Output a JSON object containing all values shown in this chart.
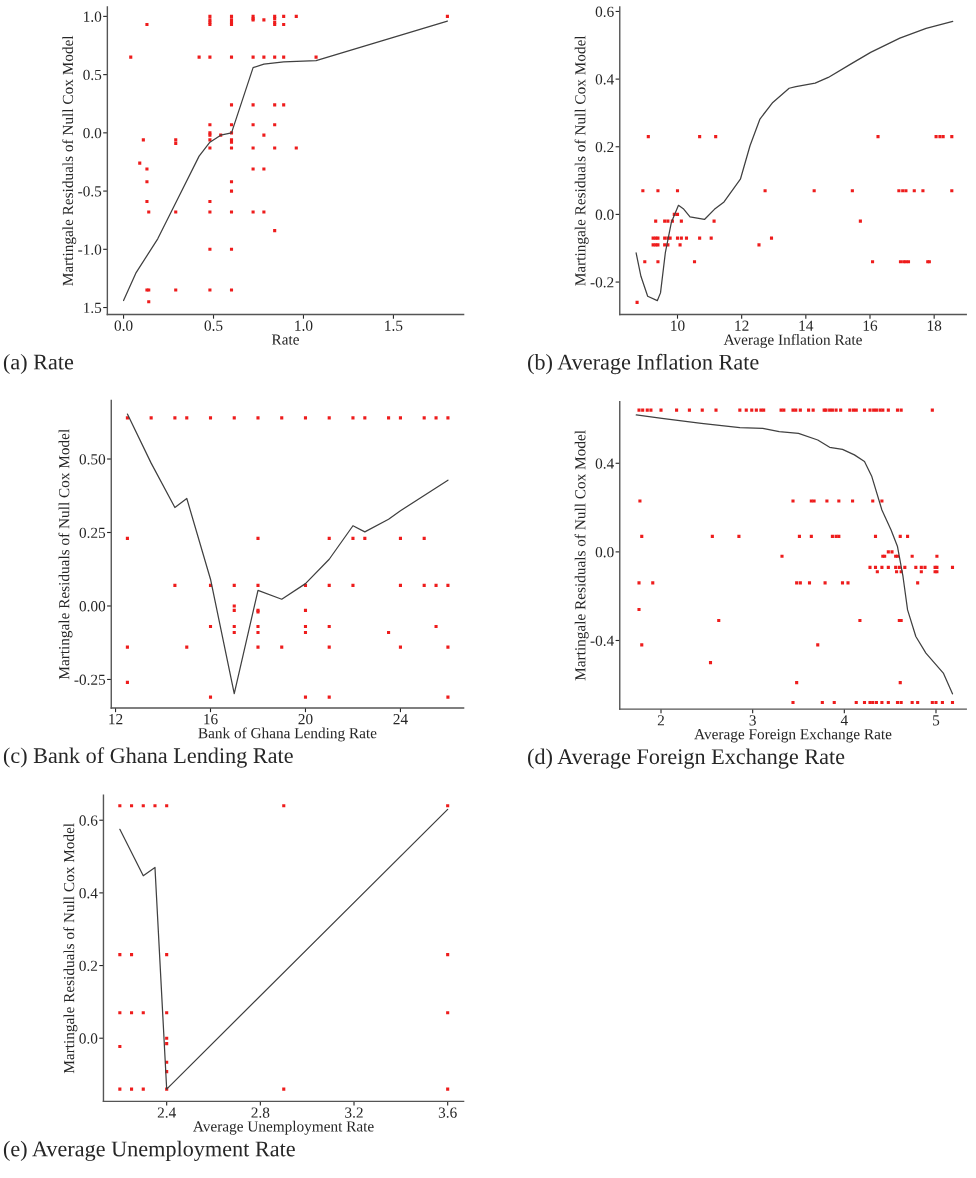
{
  "chart_data": [
    {
      "type": "scatter",
      "title": "(a) Rate",
      "xlabel": "Rate",
      "ylabel": "Martingale Residuals of Null Cox Model",
      "xlim": [
        -0.09,
        1.89
      ],
      "ylim": [
        -1.56,
        1.08
      ],
      "xticks": [
        {
          "value": 0.0,
          "label": "0.0"
        },
        {
          "value": 0.5,
          "label": "0.5"
        },
        {
          "value": 1.0,
          "label": "1.0"
        },
        {
          "value": 1.5,
          "label": "1.5"
        }
      ],
      "yticks": [
        {
          "value": 1.0,
          "label": "1.0"
        },
        {
          "value": 0.5,
          "label": "0.5"
        },
        {
          "value": 0.0,
          "label": "0.0"
        },
        {
          "value": -0.5,
          "label": "-0.5"
        },
        {
          "value": -1.0,
          "label": "-1.0"
        },
        {
          "value": -1.5,
          "label": "1.5"
        }
      ],
      "series": [
        {
          "type": "scatter",
          "marker": "square",
          "color": "#ee1c1c",
          "x": [
            0.04,
            0.09,
            0.11,
            0.13,
            0.13,
            0.13,
            0.13,
            0.13,
            0.14,
            0.14,
            0.14,
            0.29,
            0.29,
            0.29,
            0.29,
            0.42,
            0.48,
            0.48,
            0.48,
            0.48,
            0.48,
            0.48,
            0.48,
            0.48,
            0.48,
            0.48,
            0.48,
            0.48,
            0.48,
            0.48,
            0.54,
            0.6,
            0.6,
            0.6,
            0.6,
            0.6,
            0.6,
            0.6,
            0.6,
            0.6,
            0.6,
            0.6,
            0.6,
            0.6,
            0.6,
            0.6,
            0.6,
            0.72,
            0.72,
            0.72,
            0.72,
            0.72,
            0.72,
            0.72,
            0.72,
            0.72,
            0.78,
            0.78,
            0.78,
            0.78,
            0.78,
            0.84,
            0.84,
            0.84,
            0.84,
            0.84,
            0.84,
            0.84,
            0.84,
            0.84,
            0.89,
            0.89,
            0.89,
            0.89,
            0.96,
            0.96,
            1.07,
            1.8
          ],
          "values": [
            0.65,
            -0.26,
            -0.06,
            0.93,
            -0.31,
            -0.42,
            -0.59,
            -1.35,
            -0.68,
            -1.35,
            -1.45,
            -0.06,
            -0.09,
            -0.68,
            -1.35,
            0.65,
            1.0,
            0.97,
            0.95,
            0.93,
            0.65,
            0.07,
            0.0,
            -0.02,
            -0.06,
            -0.13,
            -0.59,
            -0.68,
            -1.0,
            -1.35,
            -0.02,
            1.0,
            0.97,
            0.95,
            0.93,
            0.65,
            0.24,
            0.07,
            0.0,
            -0.06,
            -0.08,
            -0.13,
            -0.42,
            -0.5,
            -0.68,
            -1.0,
            -1.35,
            1.0,
            0.98,
            0.97,
            0.65,
            0.24,
            0.07,
            -0.13,
            -0.31,
            -0.68,
            0.97,
            0.65,
            -0.02,
            -0.31,
            -0.68,
            1.0,
            0.98,
            0.95,
            0.93,
            0.65,
            0.24,
            0.07,
            -0.13,
            -0.84,
            1.0,
            0.93,
            0.65,
            0.24,
            1.0,
            -0.13,
            0.65,
            1.0
          ]
        },
        {
          "type": "line",
          "line_style": "solid",
          "color": "#404040",
          "x": [
            0.0,
            0.07,
            0.19,
            0.3,
            0.42,
            0.48,
            0.54,
            0.6,
            0.72,
            0.78,
            0.89,
            1.07,
            1.8
          ],
          "values": [
            -1.44,
            -1.2,
            -0.91,
            -0.57,
            -0.2,
            -0.08,
            -0.02,
            0.0,
            0.56,
            0.59,
            0.61,
            0.62,
            0.96
          ]
        }
      ]
    },
    {
      "type": "scatter",
      "title": "(b) Average Inflation Rate",
      "xlabel": "Average Inflation Rate",
      "ylabel": "Martingale Residuals of Null Cox Model",
      "xlim": [
        8.2,
        19.0
      ],
      "ylim": [
        -0.296,
        0.613
      ],
      "xticks": [
        10,
        12,
        14,
        16,
        18
      ],
      "yticks": [
        -0.2,
        {
          "value": 0.0,
          "label": "0.0"
        },
        0.2,
        0.4,
        0.6
      ],
      "series": [
        {
          "type": "scatter",
          "marker": "square",
          "color": "#ee1c1c",
          "x": [
            8.74,
            8.92,
            8.98,
            9.09,
            9.24,
            9.24,
            9.32,
            9.32,
            9.32,
            9.39,
            9.39,
            9.39,
            9.39,
            9.6,
            9.6,
            9.6,
            9.7,
            9.7,
            9.7,
            9.77,
            9.84,
            9.9,
            10.0,
            10.0,
            10.0,
            10.08,
            10.12,
            10.12,
            10.28,
            10.53,
            10.69,
            10.69,
            11.05,
            11.14,
            11.19,
            12.54,
            12.73,
            12.93,
            14.26,
            15.45,
            15.7,
            16.08,
            16.25,
            16.9,
            16.95,
            17.02,
            17.05,
            17.12,
            17.12,
            17.2,
            17.38,
            17.65,
            17.8,
            17.85,
            18.06,
            18.18,
            18.28,
            18.55,
            18.55
          ],
          "values": [
            -0.26,
            0.07,
            -0.14,
            0.23,
            -0.07,
            -0.09,
            -0.02,
            -0.07,
            -0.09,
            0.07,
            -0.07,
            -0.09,
            -0.14,
            -0.02,
            -0.07,
            -0.09,
            -0.02,
            -0.07,
            -0.09,
            -0.07,
            -0.02,
            0.0,
            0.07,
            0.0,
            -0.07,
            -0.09,
            -0.02,
            -0.07,
            -0.07,
            -0.14,
            0.23,
            -0.07,
            -0.07,
            -0.02,
            0.23,
            -0.09,
            0.07,
            -0.07,
            0.07,
            0.07,
            -0.02,
            -0.14,
            0.23,
            0.07,
            -0.14,
            0.07,
            -0.14,
            0.07,
            -0.14,
            -0.14,
            0.07,
            0.07,
            -0.14,
            -0.14,
            0.23,
            0.23,
            0.23,
            0.23,
            0.07
          ]
        },
        {
          "type": "line",
          "line_style": "solid",
          "color": "#404040",
          "x": [
            8.71,
            8.86,
            9.07,
            9.37,
            9.47,
            9.62,
            9.81,
            10.03,
            10.18,
            10.39,
            10.84,
            11.15,
            11.45,
            11.96,
            12.26,
            12.57,
            12.97,
            13.48,
            13.69,
            14.29,
            14.7,
            15.41,
            16.02,
            16.93,
            17.75,
            18.58
          ],
          "values": [
            -0.114,
            -0.183,
            -0.242,
            -0.255,
            -0.232,
            -0.114,
            -0.023,
            0.027,
            0.017,
            -0.007,
            -0.015,
            0.015,
            0.037,
            0.104,
            0.203,
            0.282,
            0.331,
            0.373,
            0.378,
            0.388,
            0.405,
            0.445,
            0.479,
            0.521,
            0.55,
            0.571
          ]
        }
      ]
    },
    {
      "type": "scatter",
      "title": "(c) Bank of Ghana Lending Rate",
      "xlabel": "Bank of Ghana Lending Rate",
      "ylabel": "Martingale Residuals of Null Cox Model",
      "xlim": [
        11.82,
        26.66
      ],
      "ylim": [
        -0.347,
        0.699
      ],
      "xticks": [
        12,
        16,
        20,
        24
      ],
      "yticks": [
        {
          "value": -0.25,
          "label": "-0.25"
        },
        {
          "value": 0.0,
          "label": "0.00"
        },
        {
          "value": 0.25,
          "label": "0.25"
        },
        {
          "value": 0.5,
          "label": "0.50"
        }
      ],
      "series": [
        {
          "type": "scatter",
          "marker": "square",
          "color": "#ee1c1c",
          "x": [
            12.5,
            12.5,
            12.5,
            12.5,
            13.5,
            14.5,
            14.5,
            15,
            15,
            16,
            16,
            16,
            16,
            17,
            17,
            17,
            17,
            17,
            17,
            18,
            18,
            18,
            18,
            18,
            18,
            18,
            18,
            19,
            19,
            20,
            20,
            20,
            20,
            20,
            20,
            21,
            21,
            21,
            21,
            21,
            21,
            22,
            22,
            22,
            22.5,
            22.5,
            23.5,
            23.5,
            24,
            24,
            24,
            24,
            25,
            25,
            25,
            25.5,
            25.5,
            25.5,
            26,
            26,
            26,
            26
          ],
          "values": [
            0.64,
            0.23,
            -0.14,
            -0.26,
            0.64,
            0.64,
            0.07,
            0.64,
            -0.14,
            0.64,
            0.07,
            -0.07,
            -0.31,
            0.64,
            0.07,
            0.0,
            -0.015,
            -0.07,
            -0.09,
            0.64,
            0.23,
            0.07,
            -0.015,
            -0.02,
            -0.07,
            -0.09,
            -0.14,
            0.64,
            -0.14,
            0.64,
            0.07,
            -0.015,
            -0.07,
            -0.09,
            -0.31,
            0.64,
            0.23,
            0.07,
            -0.07,
            -0.14,
            -0.31,
            0.64,
            0.23,
            0.07,
            0.64,
            0.23,
            0.64,
            -0.09,
            0.64,
            0.23,
            0.07,
            -0.14,
            0.64,
            0.23,
            0.07,
            0.64,
            0.07,
            -0.07,
            0.64,
            0.07,
            -0.14,
            -0.31
          ]
        },
        {
          "type": "line",
          "line_style": "solid",
          "color": "#404040",
          "x": [
            12.5,
            13.5,
            14.5,
            15,
            16,
            17,
            18,
            19,
            20,
            21,
            22,
            22.5,
            23.5,
            24,
            26
          ],
          "values": [
            0.653,
            0.486,
            0.335,
            0.366,
            0.091,
            -0.298,
            0.053,
            0.023,
            0.076,
            0.159,
            0.273,
            0.252,
            0.295,
            0.324,
            0.428
          ]
        }
      ]
    },
    {
      "type": "scatter",
      "title": "(d) Average Foreign Exchange Rate",
      "xlabel": "Average Foreign Exchange Rate",
      "ylabel": "Martingale Residuals of Null Cox Model",
      "xlim": [
        1.55,
        5.33
      ],
      "ylim": [
        -0.71,
        0.678
      ],
      "xticks": [
        2,
        3,
        4,
        5
      ],
      "yticks": [
        -0.4,
        {
          "value": 0.0,
          "label": "0.0"
        },
        0.4
      ],
      "series": [
        {
          "type": "scatter",
          "marker": "square",
          "color": "#ee1c1c",
          "x": [
            1.76,
            1.8,
            1.85,
            1.89,
            2.0,
            2.17,
            2.31,
            2.45,
            2.6,
            2.86,
            2.93,
            2.99,
            3.04,
            3.09,
            3.12,
            3.31,
            3.34,
            3.44,
            3.47,
            3.52,
            3.61,
            3.66,
            3.78,
            3.8,
            3.84,
            3.87,
            3.91,
            3.96,
            4.06,
            4.1,
            4.13,
            4.22,
            4.28,
            4.32,
            4.35,
            4.39,
            4.42,
            4.48,
            4.58,
            4.62,
            4.96,
            1.77,
            3.44,
            3.64,
            3.67,
            3.81,
            3.94,
            4.09,
            4.31,
            4.41,
            1.79,
            2.56,
            2.85,
            3.51,
            3.64,
            3.87,
            3.91,
            3.94,
            4.34,
            4.61,
            4.69,
            4.48,
            4.52,
            3.32,
            4.42,
            4.44,
            4.56,
            4.58,
            4.74,
            5.01,
            4.28,
            4.34,
            4.41,
            4.48,
            4.56,
            4.6,
            4.66,
            4.78,
            4.84,
            4.88,
            4.99,
            5.01,
            5.18,
            4.36,
            4.57,
            4.62,
            4.84,
            4.99,
            5.01,
            1.76,
            1.91,
            3.48,
            3.52,
            3.62,
            3.79,
            3.98,
            4.04,
            4.8,
            1.76,
            2.63,
            4.17,
            4.6,
            4.62,
            1.79,
            3.71,
            2.54,
            3.48,
            4.61,
            3.44,
            3.76,
            3.89,
            4.13,
            4.22,
            4.28,
            4.31,
            4.35,
            4.41,
            4.48,
            4.58,
            4.62,
            4.74,
            4.8,
            4.96,
            5.0,
            5.07,
            5.18
          ],
          "values": [
            0.64,
            0.64,
            0.64,
            0.64,
            0.64,
            0.64,
            0.64,
            0.64,
            0.64,
            0.64,
            0.64,
            0.64,
            0.64,
            0.64,
            0.64,
            0.64,
            0.64,
            0.64,
            0.64,
            0.64,
            0.64,
            0.64,
            0.64,
            0.64,
            0.64,
            0.64,
            0.64,
            0.64,
            0.64,
            0.64,
            0.64,
            0.64,
            0.64,
            0.64,
            0.64,
            0.64,
            0.64,
            0.64,
            0.64,
            0.64,
            0.64,
            0.23,
            0.23,
            0.23,
            0.23,
            0.23,
            0.23,
            0.23,
            0.23,
            0.23,
            0.07,
            0.07,
            0.07,
            0.07,
            0.07,
            0.07,
            0.07,
            0.07,
            0.07,
            0.07,
            0.07,
            0.0,
            0.0,
            -0.02,
            -0.02,
            -0.02,
            -0.02,
            -0.02,
            -0.02,
            -0.02,
            -0.07,
            -0.07,
            -0.07,
            -0.07,
            -0.07,
            -0.07,
            -0.07,
            -0.07,
            -0.07,
            -0.07,
            -0.07,
            -0.07,
            -0.07,
            -0.09,
            -0.09,
            -0.09,
            -0.09,
            -0.09,
            -0.09,
            -0.14,
            -0.14,
            -0.14,
            -0.14,
            -0.14,
            -0.14,
            -0.14,
            -0.14,
            -0.14,
            -0.26,
            -0.31,
            -0.31,
            -0.31,
            -0.31,
            -0.42,
            -0.42,
            -0.5,
            -0.59,
            -0.59,
            -0.68,
            -0.68,
            -0.68,
            -0.68,
            -0.68,
            -0.68,
            -0.68,
            -0.68,
            -0.68,
            -0.68,
            -0.68,
            -0.68,
            -0.68,
            -0.68,
            -0.68,
            -0.68,
            -0.68,
            -0.68
          ]
        },
        {
          "type": "line",
          "line_style": "solid",
          "color": "#404040",
          "x": [
            1.73,
            2.01,
            2.44,
            2.86,
            3.11,
            3.29,
            3.5,
            3.71,
            3.84,
            3.98,
            4.11,
            4.22,
            4.3,
            4.41,
            4.51,
            4.58,
            4.64,
            4.69,
            4.78,
            4.89,
            5.08,
            5.18
          ],
          "values": [
            0.618,
            0.603,
            0.58,
            0.561,
            0.558,
            0.543,
            0.535,
            0.505,
            0.472,
            0.463,
            0.438,
            0.408,
            0.34,
            0.189,
            0.099,
            0.024,
            -0.111,
            -0.262,
            -0.382,
            -0.457,
            -0.547,
            -0.641
          ]
        }
      ]
    },
    {
      "type": "scatter",
      "title": "(e) Average Unemployment Rate",
      "xlabel": "Average Unemployment Rate",
      "ylabel": "Martingale Residuals of Null Cox Model",
      "xlim": [
        2.13,
        3.668
      ],
      "ylim": [
        -0.174,
        0.669
      ],
      "xticks": [
        2.4,
        2.8,
        3.2,
        3.6
      ],
      "yticks": [
        {
          "value": 0.0,
          "label": "0.0"
        },
        0.2,
        0.4,
        0.6
      ],
      "series": [
        {
          "type": "scatter",
          "marker": "square",
          "color": "#ee1c1c",
          "x": [
            2.2,
            2.2,
            2.2,
            2.2,
            2.2,
            2.25,
            2.25,
            2.25,
            2.25,
            2.3,
            2.3,
            2.3,
            2.35,
            2.4,
            2.4,
            2.4,
            2.4,
            2.4,
            2.4,
            2.4,
            2.4,
            2.9,
            2.9,
            3.6,
            3.6,
            3.6,
            3.6
          ],
          "values": [
            0.64,
            0.23,
            0.07,
            -0.023,
            -0.14,
            0.64,
            0.23,
            0.07,
            -0.14,
            0.64,
            0.07,
            -0.14,
            0.64,
            0.64,
            0.23,
            0.07,
            0.0,
            -0.015,
            -0.066,
            -0.092,
            -0.14,
            0.64,
            -0.14,
            0.64,
            0.23,
            0.07,
            -0.14
          ]
        },
        {
          "type": "line",
          "line_style": "solid",
          "color": "#404040",
          "x": [
            2.2,
            2.3,
            2.35,
            2.4,
            3.6
          ],
          "values": [
            0.575,
            0.447,
            0.47,
            -0.14,
            0.63
          ]
        }
      ]
    }
  ]
}
